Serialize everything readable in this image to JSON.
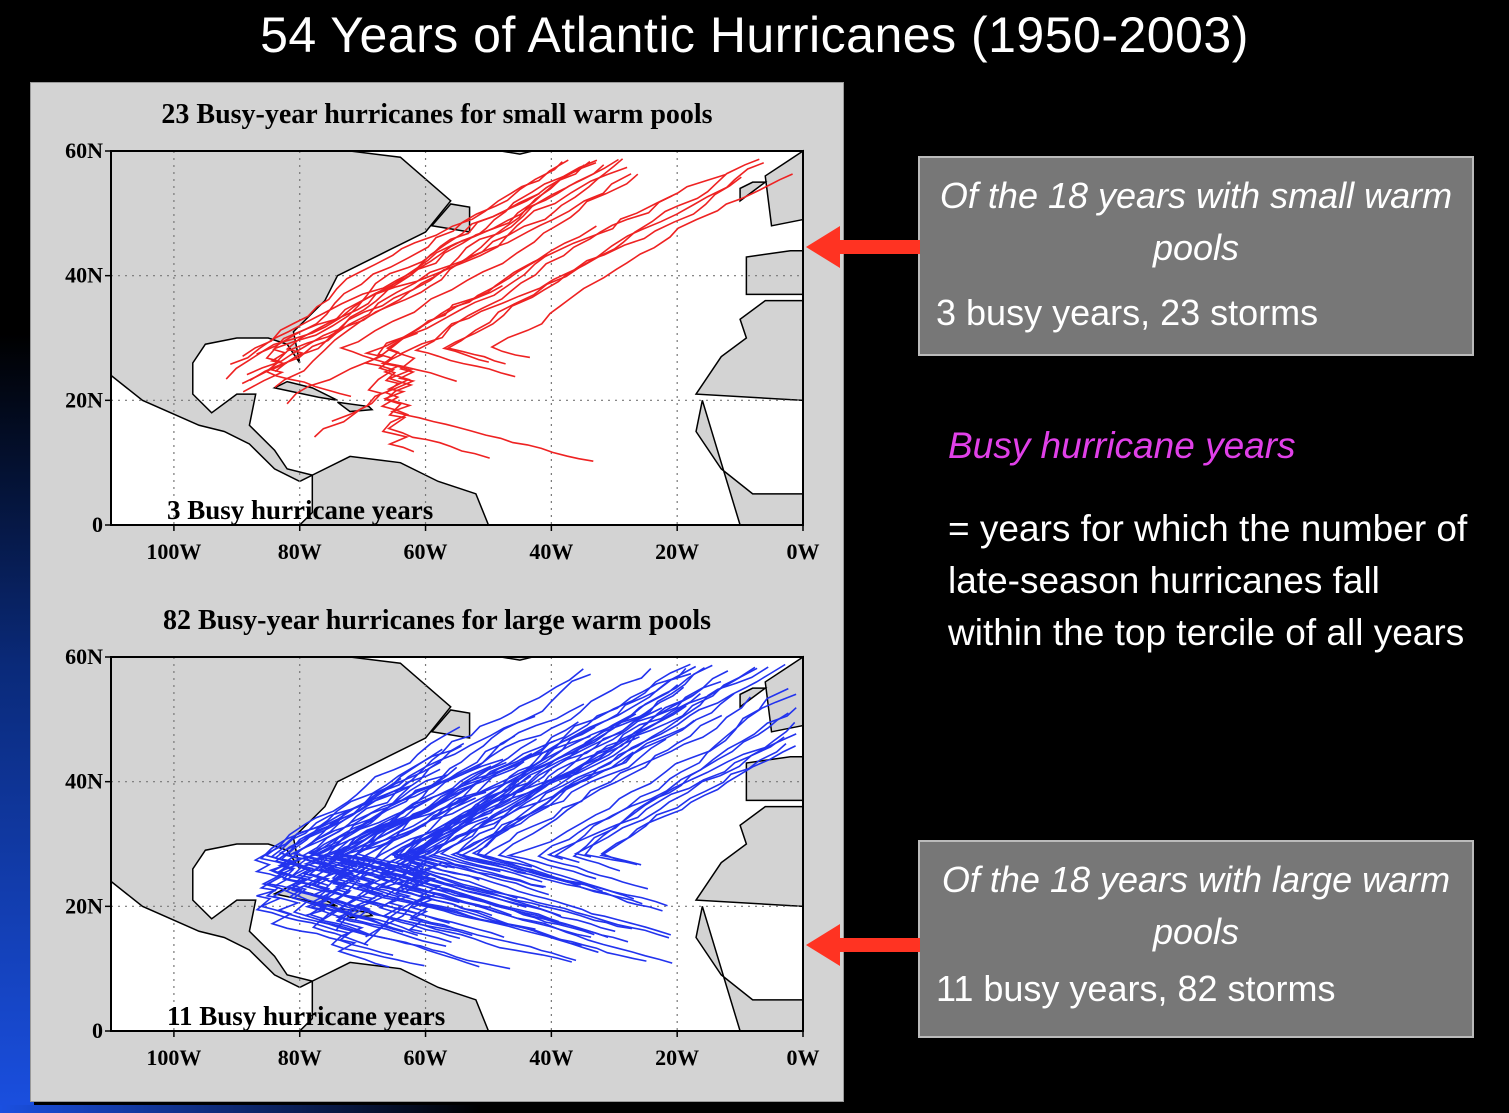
{
  "slide": {
    "title": "54 Years of Atlantic Hurricanes (1950-2003)"
  },
  "maps": [
    {
      "title": "23 Busy-year hurricanes for small warm pools",
      "inner_label": "3 Busy hurricane years",
      "track_color": "#ee2222",
      "y_ticks": [
        "60N",
        "40N",
        "20N",
        "0"
      ],
      "x_ticks": [
        "100W",
        "80W",
        "60W",
        "40W",
        "20W",
        "0W"
      ]
    },
    {
      "title": "82 Busy-year hurricanes for large warm pools",
      "inner_label": "11 Busy hurricane years",
      "track_color": "#2233ee",
      "y_ticks": [
        "60N",
        "40N",
        "20N",
        "0"
      ],
      "x_ticks": [
        "100W",
        "80W",
        "60W",
        "40W",
        "20W",
        "0W"
      ]
    }
  ],
  "callouts": [
    {
      "heading": "Of the 18 years with small warm pools",
      "body": "3 busy years, 23 storms"
    },
    {
      "heading": "Of the 18 years with large warm pools",
      "body": "11 busy years, 82 storms"
    }
  ],
  "definition": {
    "heading": "Busy hurricane years",
    "text": "= years for which the number of late-season hurricanes fall within the top tercile of all years",
    "heading_color": "#e040e8"
  },
  "colors": {
    "arrow": "#ff3322",
    "callout_bg": "#777777",
    "land": "#d3d3d3"
  }
}
